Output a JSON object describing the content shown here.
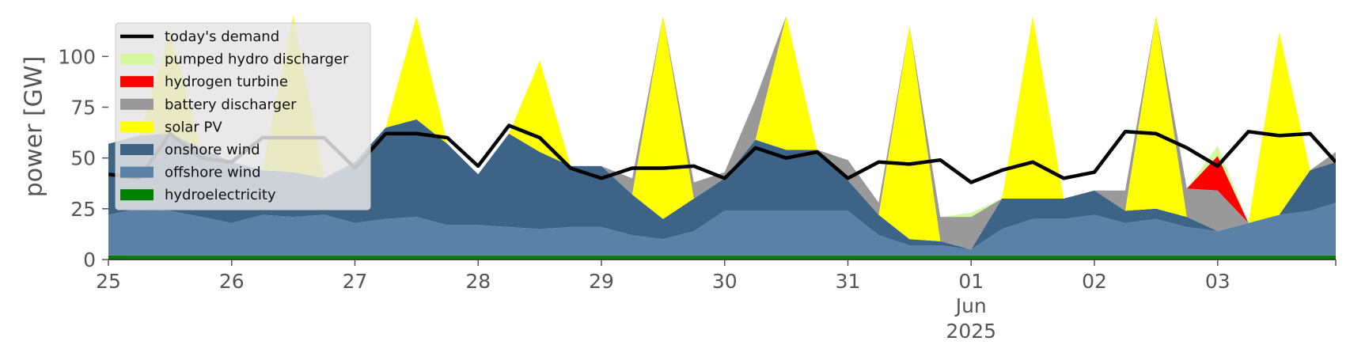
{
  "chart_data": {
    "type": "area",
    "title": "",
    "xlabel": "",
    "ylabel": "power [GW]",
    "ylim": [
      0,
      120
    ],
    "xlim": [
      "2025-05-25T00:00",
      "2025-06-03T23:00"
    ],
    "yticks": [
      0,
      25,
      50,
      75,
      100
    ],
    "yticklabels": [
      "0",
      "25",
      "50",
      "75",
      "100"
    ],
    "xticklabels": [
      "25",
      "26",
      "27",
      "28",
      "29",
      "30",
      "31",
      "01",
      "02",
      "03"
    ],
    "xtick_sublabels": {
      "month": "Jun",
      "year": "2025"
    },
    "grid": false,
    "legend_position": "top-left",
    "x": [
      "05-25 00h",
      "05-25 06h",
      "05-25 12h",
      "05-25 18h",
      "05-26 00h",
      "05-26 06h",
      "05-26 12h",
      "05-26 18h",
      "05-27 00h",
      "05-27 06h",
      "05-27 12h",
      "05-27 18h",
      "05-28 00h",
      "05-28 06h",
      "05-28 12h",
      "05-28 18h",
      "05-29 00h",
      "05-29 06h",
      "05-29 12h",
      "05-29 18h",
      "05-30 00h",
      "05-30 06h",
      "05-30 12h",
      "05-30 18h",
      "05-31 00h",
      "05-31 06h",
      "05-31 12h",
      "05-31 18h",
      "06-01 00h",
      "06-01 06h",
      "06-01 12h",
      "06-01 18h",
      "06-02 00h",
      "06-02 06h",
      "06-02 12h",
      "06-02 18h",
      "06-03 00h",
      "06-03 06h",
      "06-03 12h",
      "06-03 18h",
      "06-03 23h"
    ],
    "series": [
      {
        "name": "hydroelectricity",
        "color": "#008000",
        "values": [
          2,
          2,
          2,
          2,
          2,
          2,
          2,
          2,
          2,
          2,
          2,
          2,
          2,
          2,
          2,
          2,
          2,
          2,
          2,
          2,
          2,
          2,
          2,
          2,
          2,
          2,
          2,
          2,
          2,
          2,
          2,
          2,
          2,
          2,
          2,
          2,
          2,
          2,
          2,
          2,
          2
        ]
      },
      {
        "name": "offshore wind",
        "color": "#5b81a6",
        "values": [
          20,
          23,
          22,
          19,
          16,
          20,
          19,
          20,
          16,
          18,
          19,
          15,
          15,
          14,
          13,
          14,
          14,
          10,
          8,
          12,
          22,
          22,
          22,
          22,
          22,
          10,
          5,
          5,
          3,
          13,
          18,
          18,
          20,
          16,
          18,
          14,
          12,
          16,
          20,
          22,
          26
        ]
      },
      {
        "name": "onshore wind",
        "color": "#3d6487",
        "values": [
          35,
          36,
          38,
          34,
          30,
          22,
          22,
          18,
          30,
          45,
          48,
          40,
          25,
          46,
          38,
          30,
          30,
          20,
          10,
          16,
          16,
          35,
          30,
          30,
          15,
          10,
          3,
          2,
          0,
          15,
          10,
          10,
          12,
          6,
          5,
          5,
          0,
          0,
          0,
          20,
          20
        ]
      },
      {
        "name": "solar PV",
        "color": "#ffff00",
        "values": [
          0,
          0,
          50,
          0,
          0,
          0,
          80,
          0,
          0,
          0,
          85,
          0,
          0,
          0,
          45,
          0,
          0,
          0,
          100,
          0,
          0,
          0,
          90,
          0,
          0,
          0,
          105,
          0,
          0,
          0,
          100,
          0,
          0,
          0,
          95,
          0,
          0,
          0,
          90,
          0,
          0
        ]
      },
      {
        "name": "battery discharger",
        "color": "#999999",
        "values": [
          0,
          0,
          0,
          0,
          0,
          0,
          0,
          0,
          0,
          0,
          0,
          0,
          0,
          0,
          0,
          0,
          0,
          8,
          0,
          8,
          3,
          20,
          0,
          0,
          10,
          6,
          0,
          12,
          16,
          0,
          0,
          0,
          0,
          10,
          0,
          14,
          20,
          0,
          0,
          0,
          5
        ]
      },
      {
        "name": "hydrogen turbine",
        "color": "#ff0000",
        "values": [
          0,
          0,
          0,
          0,
          0,
          0,
          0,
          0,
          0,
          0,
          0,
          0,
          0,
          0,
          0,
          0,
          0,
          0,
          0,
          0,
          0,
          0,
          0,
          0,
          0,
          0,
          0,
          0,
          0,
          0,
          0,
          0,
          0,
          0,
          0,
          0,
          17,
          0,
          0,
          0,
          0
        ]
      },
      {
        "name": "pumped hydro discharger",
        "color": "#d4f7a0",
        "values": [
          0,
          0,
          0,
          0,
          0,
          0,
          0,
          0,
          0,
          0,
          0,
          0,
          0,
          0,
          0,
          0,
          0,
          0,
          0,
          0,
          0,
          0,
          0,
          0,
          0,
          0,
          0,
          0,
          2,
          0,
          0,
          0,
          0,
          0,
          0,
          0,
          5,
          0,
          0,
          0,
          0
        ]
      }
    ],
    "demand": {
      "name": "today's demand",
      "color": "#000000",
      "values": [
        42,
        40,
        62,
        50,
        48,
        60,
        60,
        60,
        45,
        62,
        62,
        60,
        46,
        66,
        60,
        45,
        40,
        45,
        45,
        46,
        40,
        55,
        50,
        53,
        40,
        48,
        47,
        49,
        38,
        44,
        48,
        40,
        43,
        63,
        62,
        55,
        46,
        63,
        61,
        62,
        48
      ]
    }
  }
}
